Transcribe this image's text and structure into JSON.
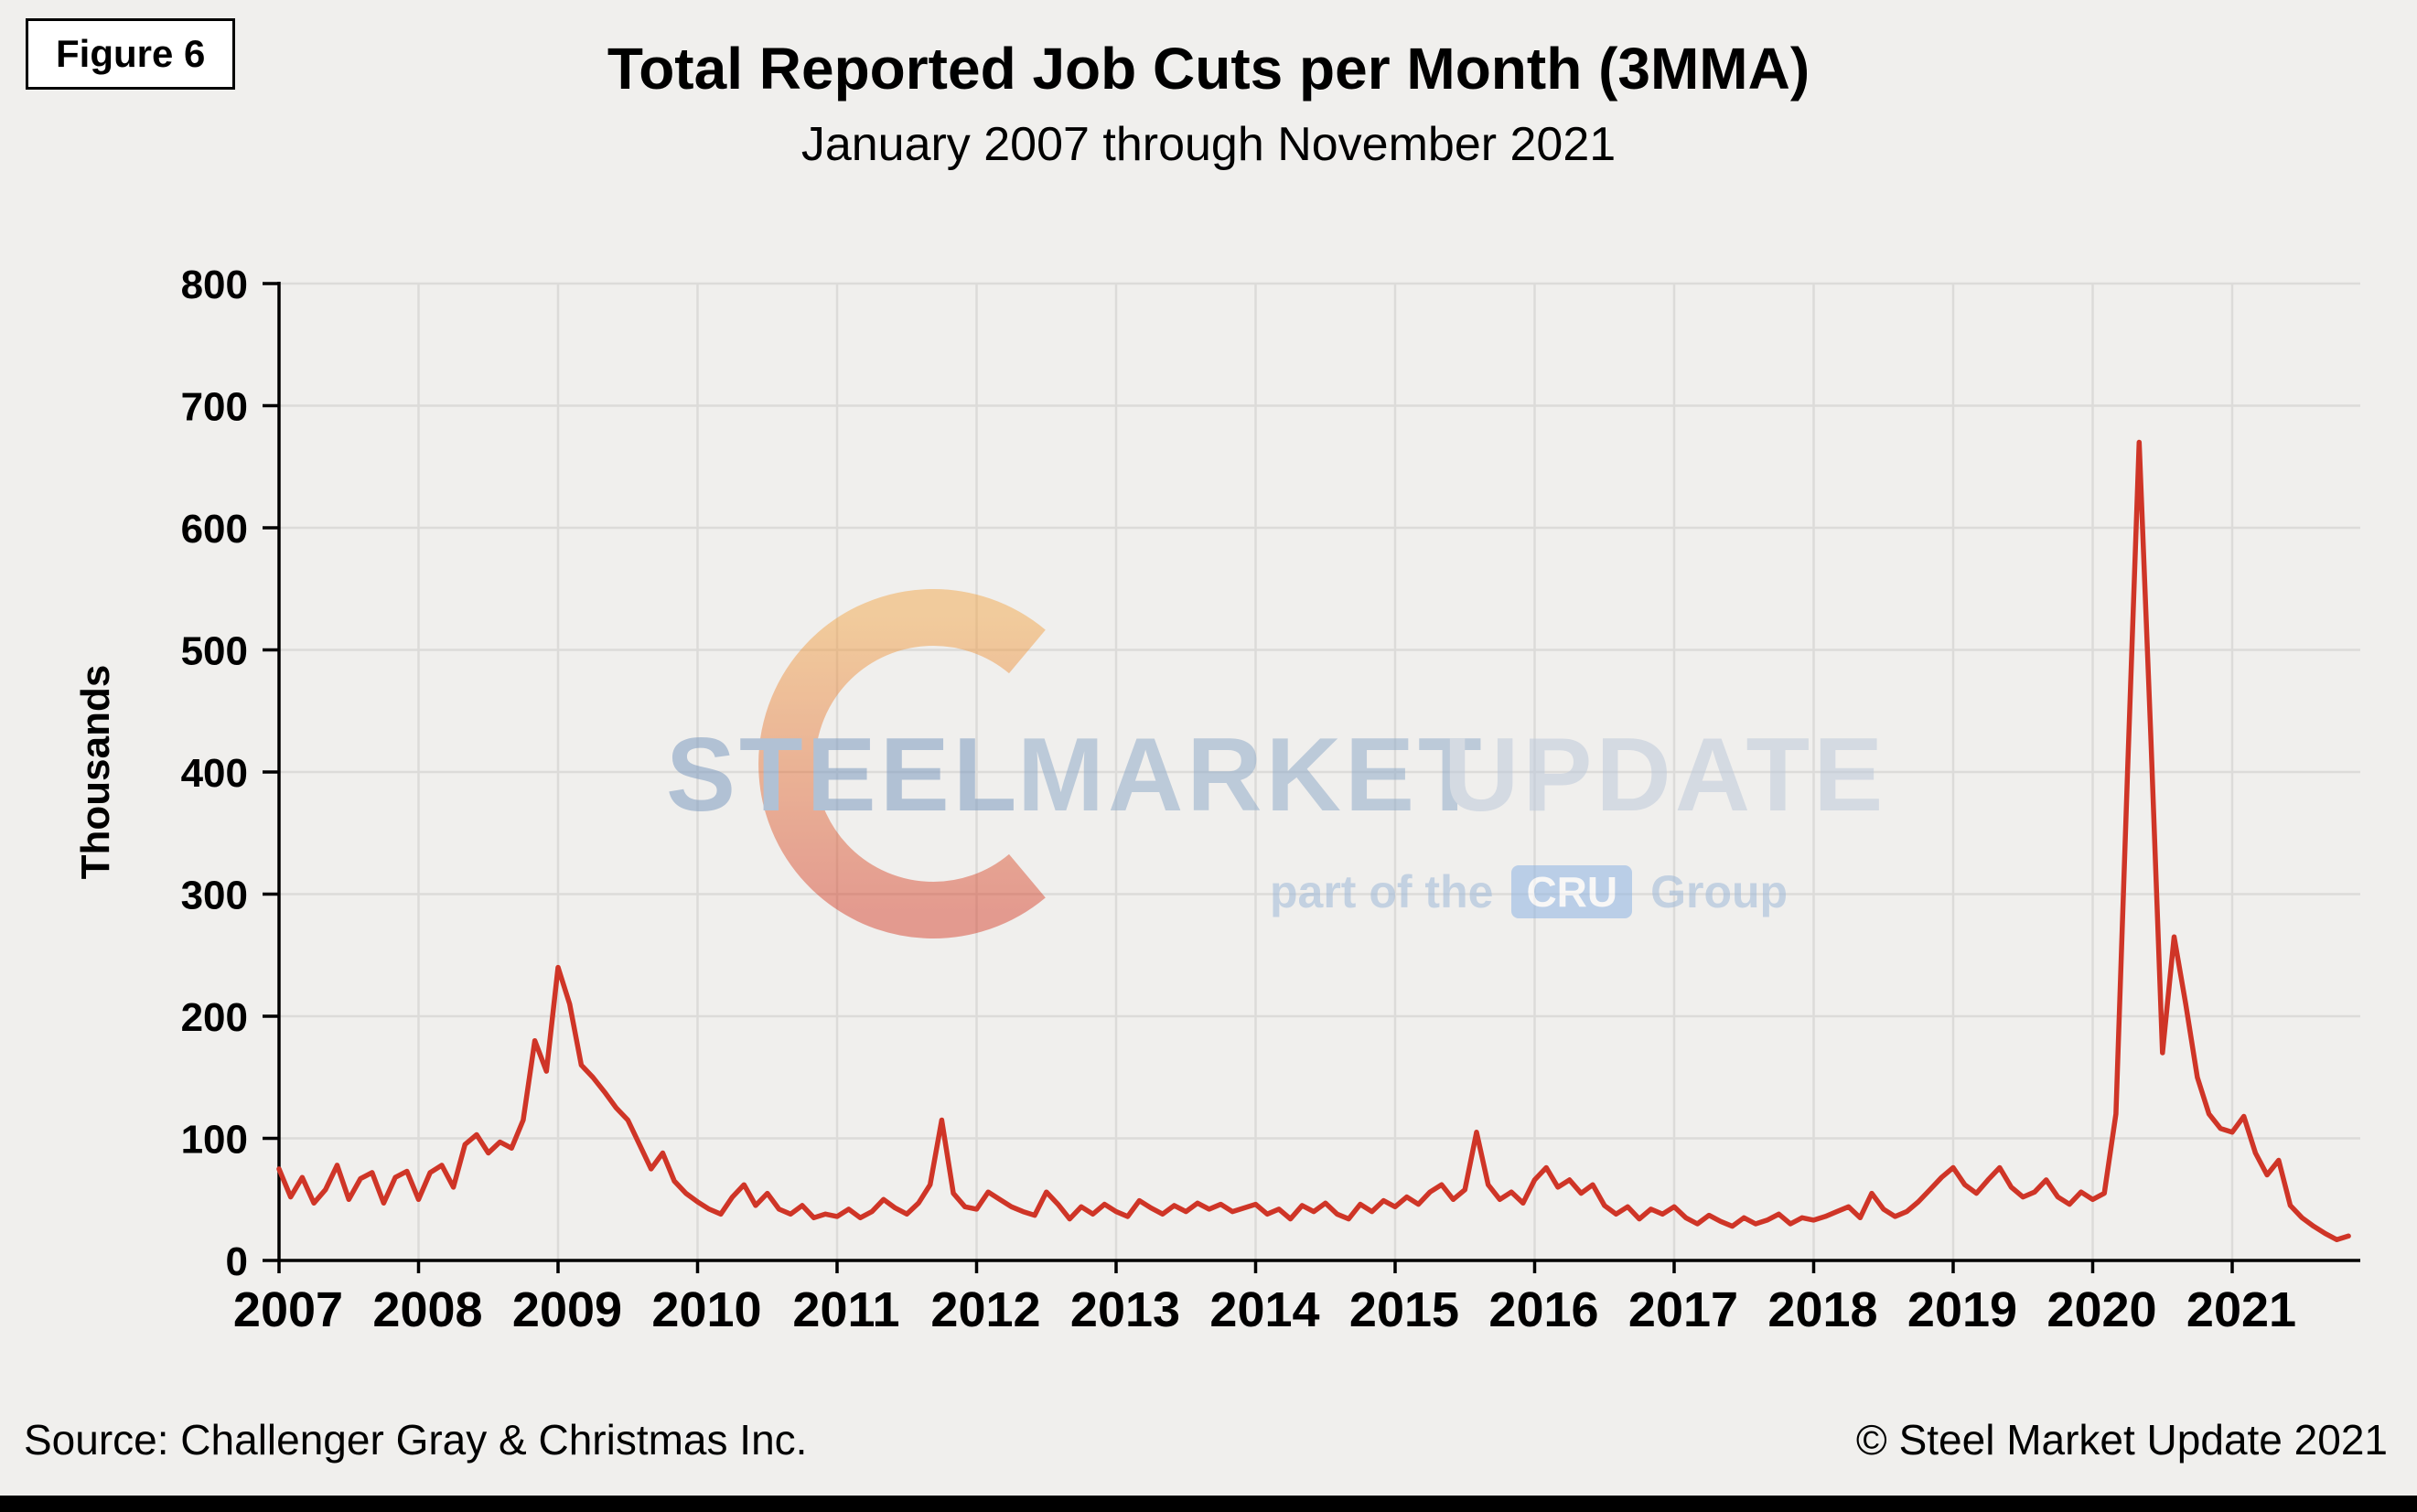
{
  "figure": {
    "label": "Figure 6"
  },
  "header": {
    "title": "Total Reported Job Cuts per Month (3MMA)",
    "subtitle": "January 2007 through November 2021"
  },
  "footer": {
    "source": "Source: Challenger Gray & Christmas Inc.",
    "copyright": "© Steel Market Update 2021"
  },
  "watermark": {
    "word1": "STEEL",
    "word2": "MARKET",
    "word3": "UPDATE",
    "tagline": "part of the",
    "cru_badge": "CRU",
    "group": "Group"
  },
  "colors": {
    "line": "#cf3527",
    "background": "#f0efed",
    "gridline": "#dcdbd9",
    "axis": "#000000"
  },
  "chart_data": {
    "type": "line",
    "title": "Total Reported Job Cuts per Month (3MMA)",
    "subtitle": "January 2007 through November 2021",
    "xlabel": "",
    "ylabel": "Thousands",
    "ylim": [
      0,
      800
    ],
    "yticks": [
      0,
      100,
      200,
      300,
      400,
      500,
      600,
      700,
      800
    ],
    "x_years": [
      2007,
      2008,
      2009,
      2010,
      2011,
      2012,
      2013,
      2014,
      2015,
      2016,
      2017,
      2018,
      2019,
      2020,
      2021
    ],
    "x_start": "2007-01",
    "x_end": "2021-11",
    "grid": true,
    "legend_position": "none",
    "series": [
      {
        "name": "Total reported job cuts per month, 3-month moving average (thousands)",
        "color": "#cf3527",
        "values": [
          75,
          52,
          68,
          47,
          58,
          78,
          50,
          67,
          72,
          47,
          68,
          73,
          50,
          72,
          78,
          60,
          95,
          103,
          88,
          97,
          92,
          115,
          180,
          155,
          240,
          210,
          160,
          150,
          138,
          125,
          115,
          95,
          75,
          88,
          65,
          55,
          48,
          42,
          38,
          52,
          62,
          45,
          55,
          42,
          38,
          45,
          35,
          38,
          36,
          42,
          35,
          40,
          50,
          43,
          38,
          47,
          62,
          115,
          55,
          44,
          42,
          56,
          50,
          44,
          40,
          37,
          56,
          46,
          34,
          44,
          38,
          46,
          40,
          36,
          49,
          43,
          38,
          45,
          40,
          47,
          42,
          46,
          40,
          43,
          46,
          38,
          42,
          34,
          45,
          40,
          47,
          38,
          34,
          46,
          40,
          49,
          44,
          52,
          46,
          56,
          62,
          50,
          58,
          105,
          62,
          50,
          56,
          47,
          66,
          76,
          60,
          66,
          55,
          62,
          45,
          38,
          44,
          34,
          42,
          38,
          44,
          35,
          30,
          37,
          32,
          28,
          35,
          30,
          33,
          38,
          30,
          35,
          33,
          36,
          40,
          44,
          35,
          55,
          42,
          36,
          40,
          48,
          58,
          68,
          76,
          62,
          55,
          66,
          76,
          60,
          52,
          56,
          66,
          52,
          46,
          56,
          50,
          55,
          120,
          400,
          670,
          430,
          170,
          265,
          210,
          150,
          120,
          108,
          105,
          118,
          88,
          70,
          82,
          45,
          35,
          28,
          22,
          17,
          20
        ]
      }
    ]
  }
}
